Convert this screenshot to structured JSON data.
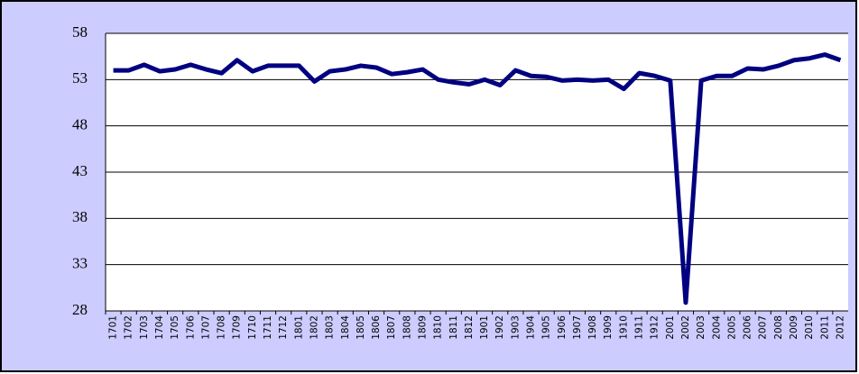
{
  "chart_data": {
    "type": "line",
    "categories": [
      "1701",
      "1702",
      "1703",
      "1704",
      "1705",
      "1706",
      "1707",
      "1708",
      "1709",
      "1710",
      "1711",
      "1712",
      "1801",
      "1802",
      "1803",
      "1804",
      "1805",
      "1806",
      "1807",
      "1808",
      "1809",
      "1810",
      "1811",
      "1812",
      "1901",
      "1902",
      "1903",
      "1904",
      "1905",
      "1906",
      "1907",
      "1908",
      "1909",
      "1910",
      "1911",
      "1912",
      "2001",
      "2002",
      "2003",
      "2004",
      "2005",
      "2006",
      "2007",
      "2008",
      "2009",
      "2010",
      "2011",
      "2012"
    ],
    "values": [
      54.0,
      54.0,
      54.6,
      53.9,
      54.1,
      54.6,
      54.1,
      53.7,
      55.1,
      53.9,
      54.5,
      54.5,
      54.5,
      52.8,
      53.9,
      54.1,
      54.5,
      54.3,
      53.6,
      53.8,
      54.1,
      53.0,
      52.7,
      52.5,
      53.0,
      52.4,
      54.0,
      53.4,
      53.3,
      52.9,
      53.0,
      52.9,
      53.0,
      52.0,
      53.7,
      53.4,
      52.9,
      28.9,
      52.9,
      53.4,
      53.4,
      54.2,
      54.1,
      54.5,
      55.1,
      55.3,
      55.7,
      55.1
    ],
    "color": "#000080",
    "ylim": [
      28,
      58
    ],
    "yticks": [
      28,
      33,
      38,
      43,
      48,
      53,
      58
    ],
    "grid": true
  }
}
